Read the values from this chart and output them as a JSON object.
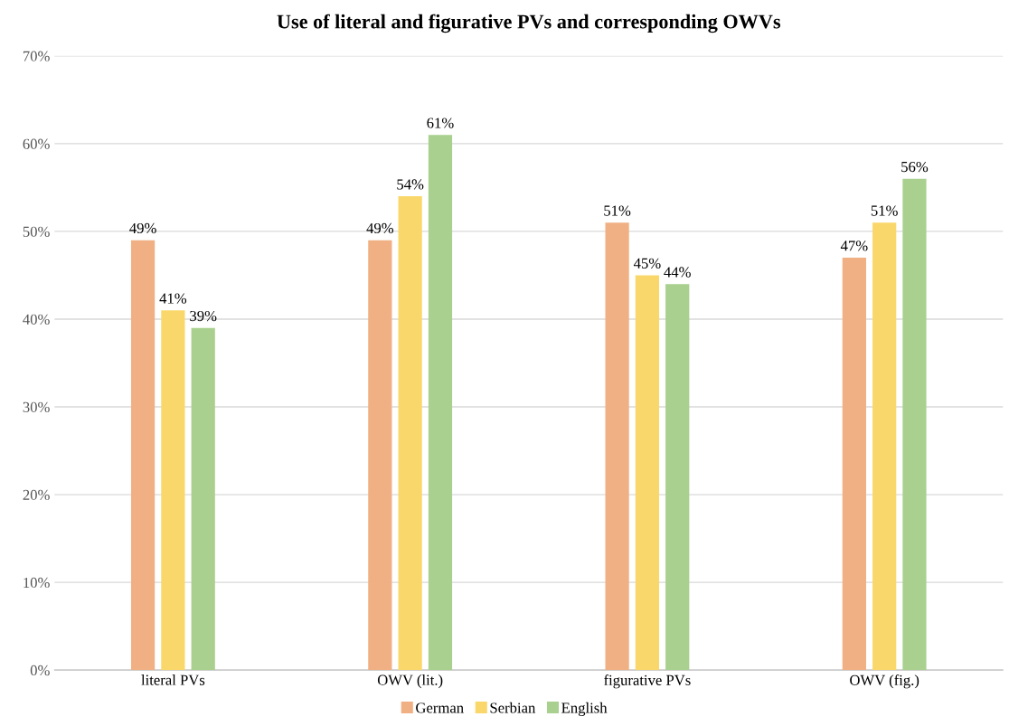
{
  "chart_data": {
    "type": "bar",
    "title": "Use of literal and figurative PVs and corresponding OWVs",
    "categories": [
      "literal PVs",
      "OWV (lit.)",
      "figurative PVs",
      "OWV (fig.)"
    ],
    "series": [
      {
        "name": "German",
        "color": "#f0b084",
        "values": [
          49,
          49,
          51,
          47
        ],
        "value_labels": [
          "49%",
          "49%",
          "51%",
          "47%"
        ]
      },
      {
        "name": "Serbian",
        "color": "#fad76a",
        "values": [
          41,
          54,
          45,
          51
        ],
        "value_labels": [
          "41%",
          "54%",
          "45%",
          "51%"
        ]
      },
      {
        "name": "English",
        "color": "#a9d08e",
        "values": [
          39,
          61,
          44,
          56
        ],
        "value_labels": [
          "39%",
          "61%",
          "44%",
          "56%"
        ]
      }
    ],
    "ylim": [
      0,
      70
    ],
    "yticks": [
      {
        "value": 0,
        "label": "0%"
      },
      {
        "value": 10,
        "label": "10%"
      },
      {
        "value": 20,
        "label": "20%"
      },
      {
        "value": 30,
        "label": "30%"
      },
      {
        "value": 40,
        "label": "40%"
      },
      {
        "value": 50,
        "label": "50%"
      },
      {
        "value": 60,
        "label": "60%"
      },
      {
        "value": 70,
        "label": "70%"
      }
    ],
    "grid": "y",
    "legend": "bottom"
  }
}
